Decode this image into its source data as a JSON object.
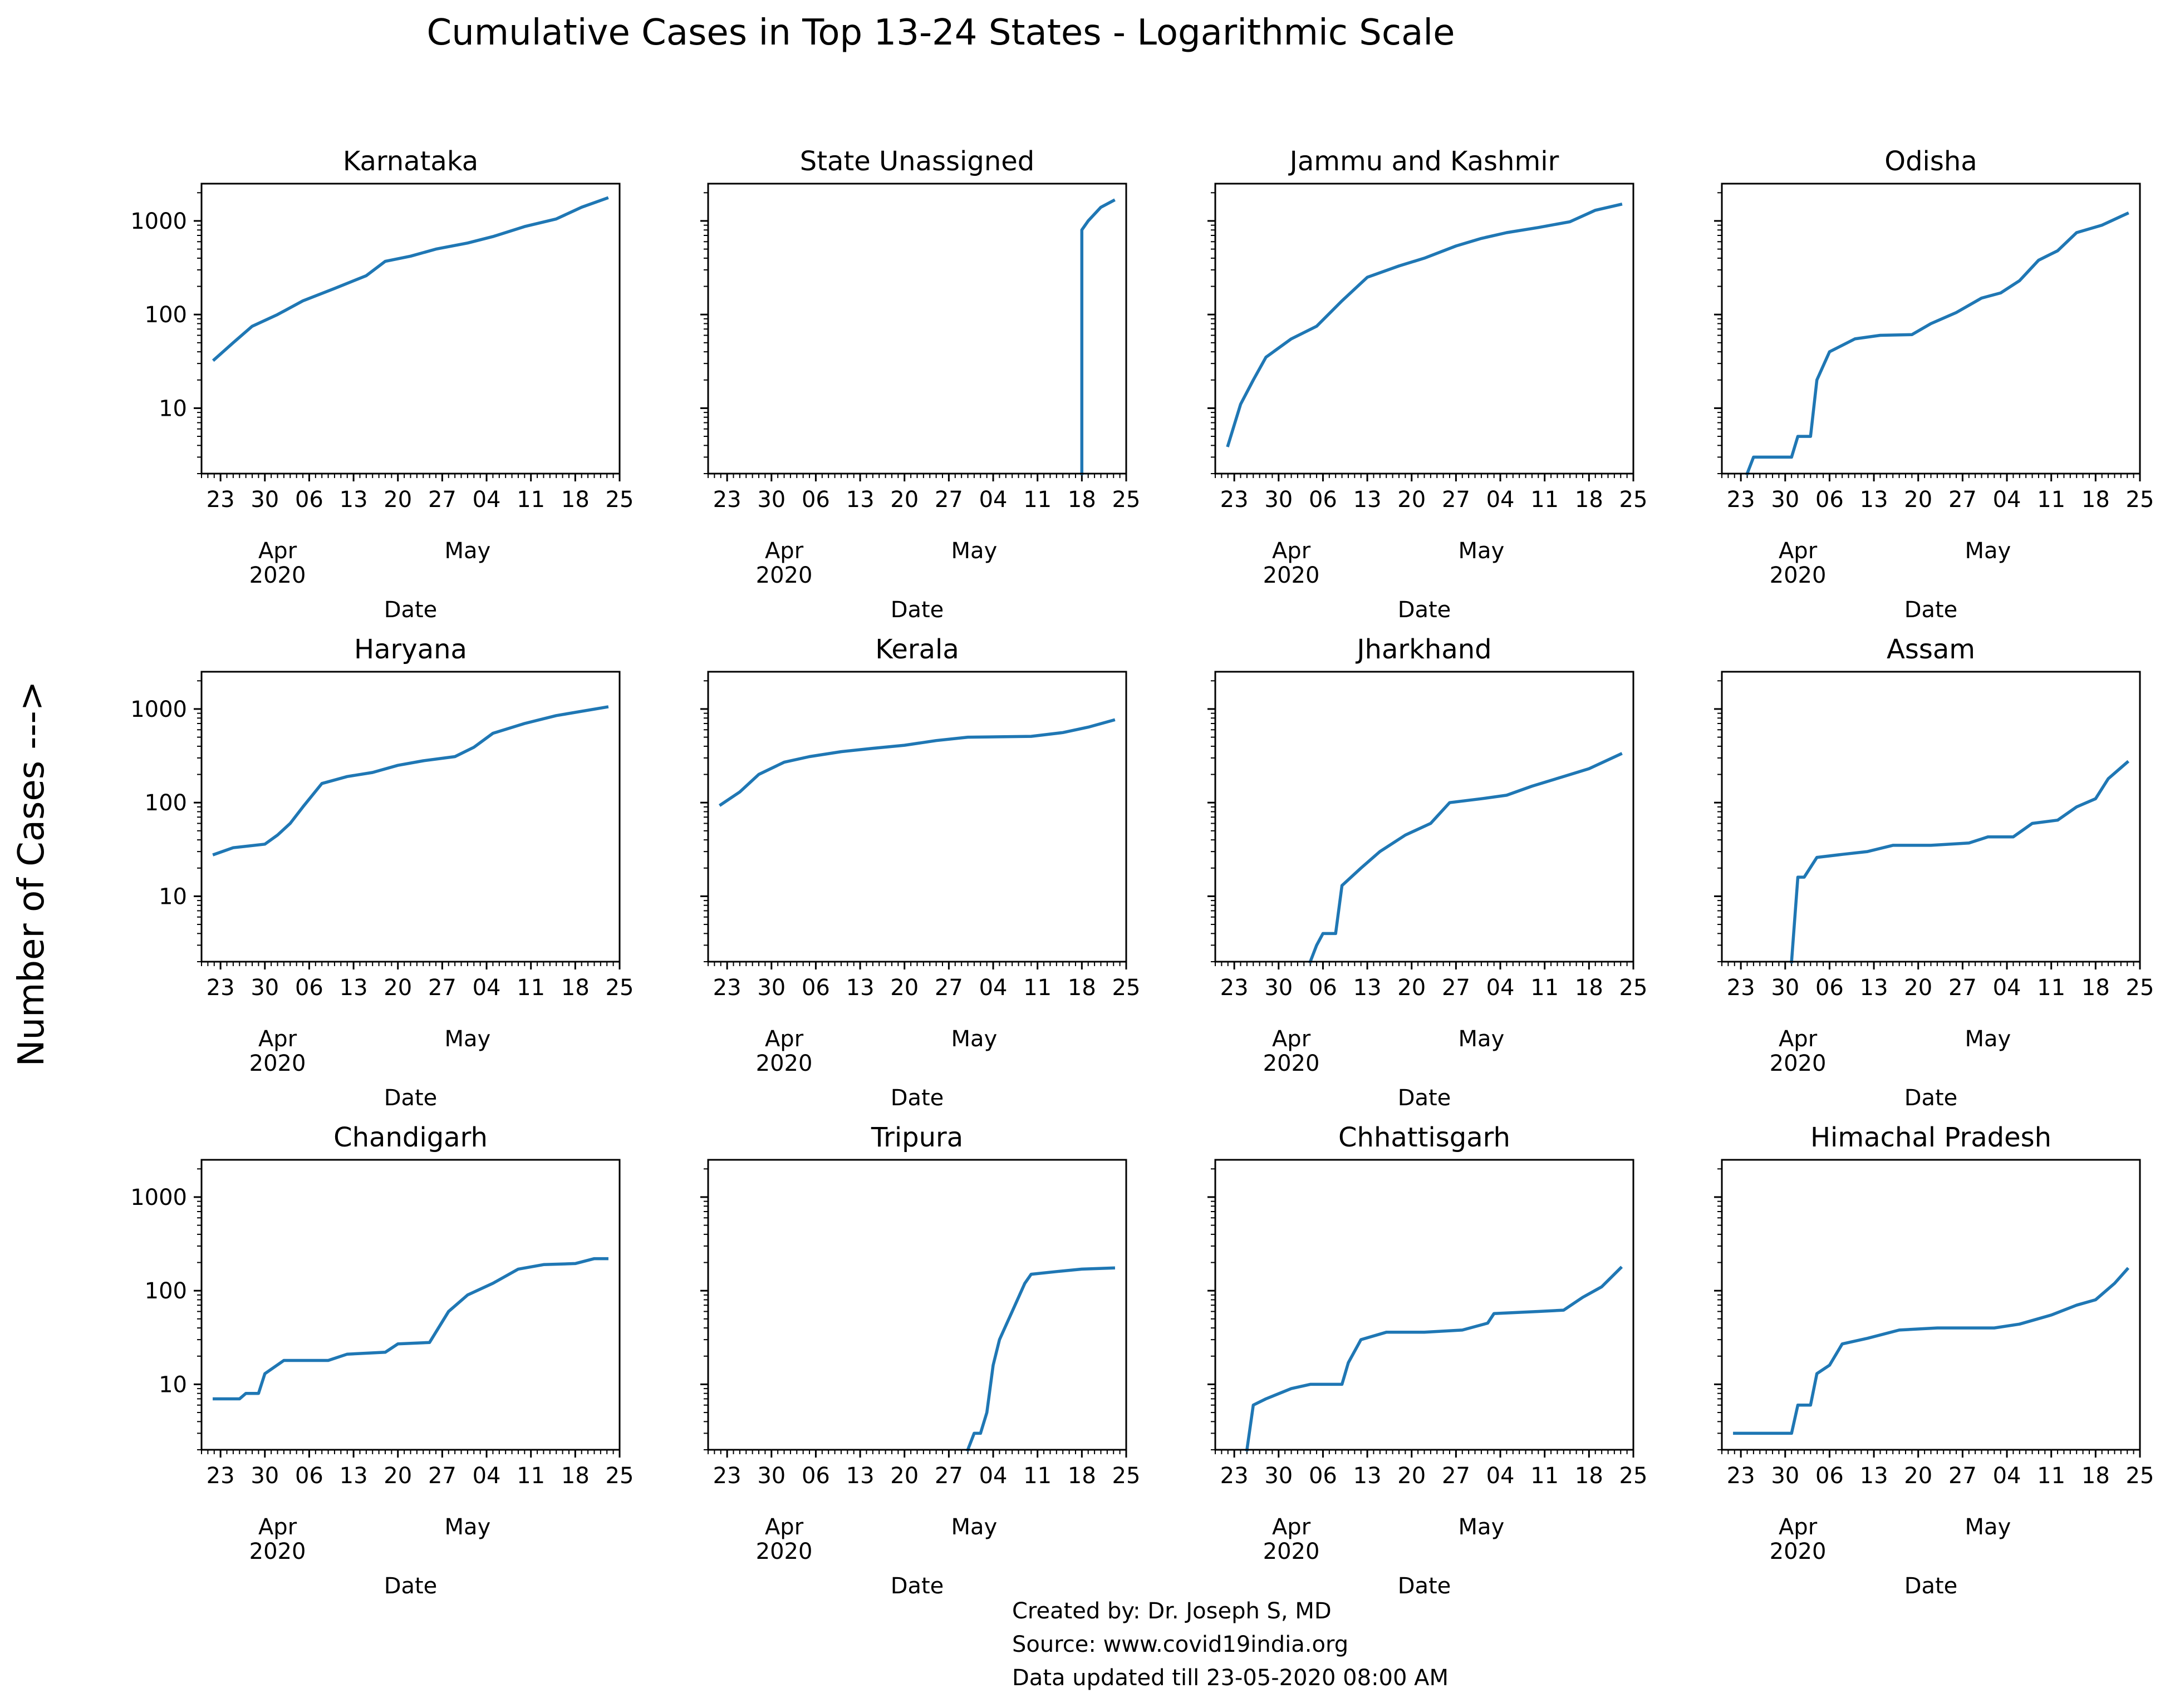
{
  "title": "Cumulative Cases in Top 13-24 States - Logarithmic Scale",
  "ylabel": "Number of Cases --->",
  "credits": [
    "Created by: Dr. Joseph S, MD",
    "Source: www.covid19india.org",
    "Data updated till 23-05-2020 08:00 AM"
  ],
  "chart_data": {
    "type": "line",
    "shared": {
      "yscale": "log",
      "ylim": [
        2,
        2500
      ],
      "yticks": [
        10,
        100,
        1000
      ],
      "ytick_labels": [
        "10",
        "100",
        "1000"
      ],
      "xlim": [
        "2020-03-20",
        "2020-05-25"
      ],
      "xticks": [
        "2020-03-23",
        "2020-03-30",
        "2020-04-06",
        "2020-04-13",
        "2020-04-20",
        "2020-04-27",
        "2020-05-04",
        "2020-05-11",
        "2020-05-18",
        "2020-05-25"
      ],
      "xtick_labels": [
        "23",
        "30",
        "06",
        "13",
        "20",
        "27",
        "04",
        "11",
        "18",
        "25"
      ],
      "month_labels": [
        {
          "date": "2020-04-01",
          "label": "Apr"
        },
        {
          "date": "2020-05-01",
          "label": "May"
        }
      ],
      "year_label": {
        "date": "2020-04-01",
        "label": "2020"
      },
      "xlabel": "Date",
      "grid": false
    },
    "panels": [
      {
        "name": "Karnataka",
        "x": [
          "2020-03-22",
          "2020-03-25",
          "2020-03-28",
          "2020-04-01",
          "2020-04-05",
          "2020-04-10",
          "2020-04-15",
          "2020-04-18",
          "2020-04-22",
          "2020-04-26",
          "2020-05-01",
          "2020-05-05",
          "2020-05-10",
          "2020-05-15",
          "2020-05-19",
          "2020-05-23"
        ],
        "y": [
          33,
          50,
          75,
          100,
          140,
          190,
          260,
          370,
          420,
          500,
          580,
          680,
          870,
          1050,
          1400,
          1750
        ]
      },
      {
        "name": "State Unassigned",
        "x": [
          "2020-05-18",
          "2020-05-18",
          "2020-05-19",
          "2020-05-21",
          "2020-05-23"
        ],
        "y": [
          2,
          800,
          1000,
          1400,
          1650
        ]
      },
      {
        "name": "Jammu and Kashmir",
        "x": [
          "2020-03-22",
          "2020-03-24",
          "2020-03-26",
          "2020-03-28",
          "2020-04-01",
          "2020-04-05",
          "2020-04-09",
          "2020-04-13",
          "2020-04-18",
          "2020-04-22",
          "2020-04-27",
          "2020-05-01",
          "2020-05-05",
          "2020-05-10",
          "2020-05-15",
          "2020-05-19",
          "2020-05-23"
        ],
        "y": [
          4,
          11,
          20,
          35,
          55,
          75,
          140,
          250,
          330,
          400,
          540,
          650,
          750,
          850,
          980,
          1300,
          1500
        ]
      },
      {
        "name": "Odisha",
        "x": [
          "2020-03-24",
          "2020-03-25",
          "2020-03-31",
          "2020-04-01",
          "2020-04-03",
          "2020-04-04",
          "2020-04-06",
          "2020-04-10",
          "2020-04-14",
          "2020-04-19",
          "2020-04-22",
          "2020-04-26",
          "2020-04-30",
          "2020-05-03",
          "2020-05-06",
          "2020-05-09",
          "2020-05-12",
          "2020-05-15",
          "2020-05-19",
          "2020-05-23"
        ],
        "y": [
          2,
          3,
          3,
          5,
          5,
          20,
          40,
          55,
          60,
          61,
          80,
          105,
          150,
          170,
          230,
          380,
          480,
          750,
          900,
          1200
        ]
      },
      {
        "name": "Haryana",
        "x": [
          "2020-03-22",
          "2020-03-25",
          "2020-03-30",
          "2020-04-01",
          "2020-04-03",
          "2020-04-05",
          "2020-04-08",
          "2020-04-12",
          "2020-04-16",
          "2020-04-20",
          "2020-04-24",
          "2020-04-29",
          "2020-05-02",
          "2020-05-05",
          "2020-05-10",
          "2020-05-15",
          "2020-05-23"
        ],
        "y": [
          28,
          33,
          36,
          45,
          60,
          90,
          160,
          190,
          210,
          250,
          280,
          310,
          390,
          550,
          700,
          850,
          1050
        ]
      },
      {
        "name": "Kerala",
        "x": [
          "2020-03-22",
          "2020-03-25",
          "2020-03-28",
          "2020-04-01",
          "2020-04-05",
          "2020-04-10",
          "2020-04-15",
          "2020-04-20",
          "2020-04-25",
          "2020-04-30",
          "2020-05-05",
          "2020-05-10",
          "2020-05-15",
          "2020-05-19",
          "2020-05-23"
        ],
        "y": [
          95,
          130,
          200,
          270,
          310,
          350,
          380,
          410,
          460,
          500,
          505,
          510,
          560,
          640,
          760
        ]
      },
      {
        "name": "Jharkhand",
        "x": [
          "2020-04-04",
          "2020-04-05",
          "2020-04-06",
          "2020-04-08",
          "2020-04-09",
          "2020-04-12",
          "2020-04-15",
          "2020-04-19",
          "2020-04-23",
          "2020-04-26",
          "2020-05-01",
          "2020-05-05",
          "2020-05-09",
          "2020-05-14",
          "2020-05-18",
          "2020-05-23"
        ],
        "y": [
          2,
          3,
          4,
          4,
          13,
          20,
          30,
          45,
          60,
          100,
          110,
          120,
          150,
          190,
          230,
          330
        ]
      },
      {
        "name": "Assam",
        "x": [
          "2020-03-31",
          "2020-04-01",
          "2020-04-02",
          "2020-04-04",
          "2020-04-08",
          "2020-04-12",
          "2020-04-16",
          "2020-04-22",
          "2020-04-28",
          "2020-05-01",
          "2020-05-05",
          "2020-05-08",
          "2020-05-12",
          "2020-05-15",
          "2020-05-18",
          "2020-05-20",
          "2020-05-23"
        ],
        "y": [
          2,
          16,
          16,
          26,
          28,
          30,
          35,
          35,
          37,
          43,
          43,
          60,
          65,
          90,
          110,
          180,
          270
        ]
      },
      {
        "name": "Chandigarh",
        "x": [
          "2020-03-22",
          "2020-03-26",
          "2020-03-27",
          "2020-03-29",
          "2020-03-30",
          "2020-04-02",
          "2020-04-09",
          "2020-04-12",
          "2020-04-18",
          "2020-04-20",
          "2020-04-25",
          "2020-04-28",
          "2020-05-01",
          "2020-05-05",
          "2020-05-09",
          "2020-05-13",
          "2020-05-18",
          "2020-05-21",
          "2020-05-23"
        ],
        "y": [
          7,
          7,
          8,
          8,
          13,
          18,
          18,
          21,
          22,
          27,
          28,
          60,
          90,
          120,
          170,
          190,
          195,
          220,
          220
        ]
      },
      {
        "name": "Tripura",
        "x": [
          "2020-04-30",
          "2020-05-01",
          "2020-05-02",
          "2020-05-03",
          "2020-05-04",
          "2020-05-05",
          "2020-05-07",
          "2020-05-09",
          "2020-05-10",
          "2020-05-14",
          "2020-05-18",
          "2020-05-23"
        ],
        "y": [
          2,
          3,
          3,
          5,
          16,
          30,
          60,
          120,
          150,
          160,
          170,
          175
        ]
      },
      {
        "name": "Chhattisgarh",
        "x": [
          "2020-03-25",
          "2020-03-26",
          "2020-03-28",
          "2020-04-01",
          "2020-04-04",
          "2020-04-09",
          "2020-04-10",
          "2020-04-12",
          "2020-04-16",
          "2020-04-22",
          "2020-04-28",
          "2020-05-02",
          "2020-05-03",
          "2020-05-10",
          "2020-05-14",
          "2020-05-17",
          "2020-05-20",
          "2020-05-23"
        ],
        "y": [
          2,
          6,
          7,
          9,
          10,
          10,
          17,
          30,
          36,
          36,
          38,
          45,
          57,
          60,
          62,
          85,
          110,
          175
        ]
      },
      {
        "name": "Himachal Pradesh",
        "x": [
          "2020-03-22",
          "2020-03-31",
          "2020-04-01",
          "2020-04-03",
          "2020-04-04",
          "2020-04-06",
          "2020-04-08",
          "2020-04-12",
          "2020-04-17",
          "2020-04-23",
          "2020-04-28",
          "2020-05-02",
          "2020-05-06",
          "2020-05-11",
          "2020-05-15",
          "2020-05-18",
          "2020-05-21",
          "2020-05-23"
        ],
        "y": [
          3,
          3,
          6,
          6,
          13,
          16,
          27,
          31,
          38,
          40,
          40,
          40,
          44,
          55,
          70,
          80,
          120,
          170
        ]
      }
    ]
  }
}
